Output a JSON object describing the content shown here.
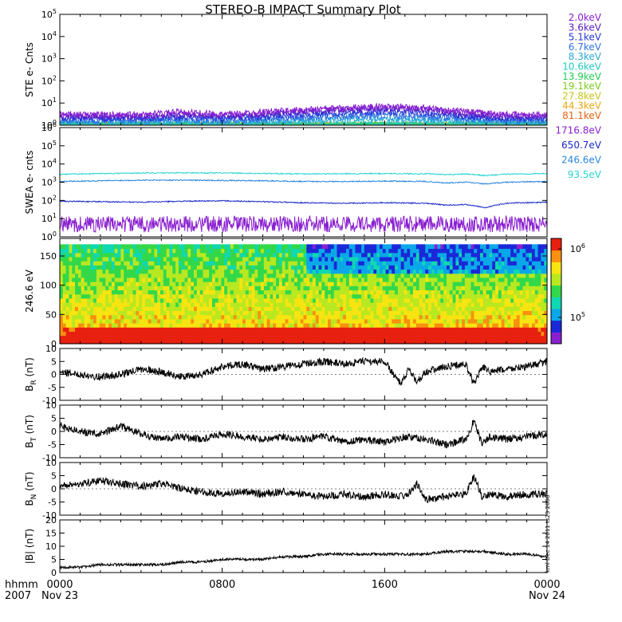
{
  "title": "STEREO-B IMPACT Summary Plot",
  "time_axis": {
    "corner_top": "hhmm",
    "corner_bottom": "2007",
    "ticks": [
      {
        "hour": 0,
        "label": "0000",
        "sub": "Nov 23"
      },
      {
        "hour": 8,
        "label": "0800",
        "sub": ""
      },
      {
        "hour": 16,
        "label": "1600",
        "sub": ""
      },
      {
        "hour": 24,
        "label": "0000",
        "sub": "Nov 24"
      }
    ]
  },
  "side_stamp": "kml Dec 14 2011 ts23 2008",
  "colors": {
    "ste": [
      "#8a1fd0",
      "#5a20c8",
      "#2838d8",
      "#2e74e0",
      "#2aa8d8",
      "#20c8c0",
      "#22cc55",
      "#7bcc1e",
      "#c8c61a",
      "#e6a60e",
      "#e66010",
      "#d4221a"
    ],
    "swea": [
      "#8a1fd0",
      "#1a28c8",
      "#2a86dc",
      "#2ad4d4"
    ],
    "colorbar": [
      "#8a1fd0",
      "#1a28d8",
      "#0aa8e8",
      "#10d8b0",
      "#32d84a",
      "#b8e820",
      "#f8e410",
      "#f89010",
      "#e82010"
    ]
  },
  "chart_data": [
    {
      "panel": "STE",
      "type": "line",
      "ylabel": "STE e- Cnts",
      "yscale": "log",
      "ylim": [
        1,
        100000
      ],
      "yticks": [
        "10^0",
        "10^1",
        "10^2",
        "10^3",
        "10^4",
        "10^5"
      ],
      "series": [
        {
          "name": "2.0keV",
          "x": [
            0,
            2,
            4,
            6,
            8,
            10,
            12,
            14,
            16,
            18,
            20,
            22,
            24
          ],
          "y": [
            3,
            3,
            3,
            4,
            3,
            4,
            5,
            6,
            7,
            6,
            4,
            3,
            3
          ]
        },
        {
          "name": "3.6keV",
          "x": [
            0,
            2,
            4,
            6,
            8,
            10,
            12,
            14,
            16,
            18,
            20,
            22,
            24
          ],
          "y": [
            2.5,
            2.5,
            2.5,
            3,
            2.5,
            3,
            4,
            5,
            5.5,
            5,
            3,
            2.5,
            2.5
          ]
        },
        {
          "name": "5.1keV",
          "x": [
            0,
            2,
            4,
            6,
            8,
            10,
            12,
            14,
            16,
            18,
            20,
            22,
            24
          ],
          "y": [
            2,
            2,
            2,
            2.2,
            2,
            2.3,
            3,
            3.5,
            4,
            3.5,
            2.5,
            2,
            2
          ]
        },
        {
          "name": "6.7keV",
          "x": [
            0,
            2,
            4,
            6,
            8,
            10,
            12,
            14,
            16,
            18,
            20,
            22,
            24
          ],
          "y": [
            1.6,
            1.6,
            1.6,
            1.8,
            1.6,
            1.8,
            2.2,
            2.5,
            2.8,
            2.4,
            1.9,
            1.6,
            1.6
          ]
        },
        {
          "name": "8.3keV",
          "x": [
            0,
            2,
            4,
            6,
            8,
            10,
            12,
            14,
            16,
            18,
            20,
            22,
            24
          ],
          "y": [
            1.3,
            1.3,
            1.3,
            1.4,
            1.3,
            1.4,
            1.6,
            1.8,
            1.9,
            1.7,
            1.5,
            1.3,
            1.3
          ]
        },
        {
          "name": "10.6keV",
          "x": [
            0,
            24
          ],
          "y": [
            1.1,
            1.1
          ]
        },
        {
          "name": "13.9keV",
          "x": [
            0,
            24
          ],
          "y": [
            1.05,
            1.05
          ]
        },
        {
          "name": "19.1keV",
          "x": [
            0,
            24
          ],
          "y": [
            1,
            1
          ]
        },
        {
          "name": "27.8keV",
          "x": [
            0,
            24
          ],
          "y": [
            1,
            1
          ]
        },
        {
          "name": "44.3keV",
          "x": [
            0,
            24
          ],
          "y": [
            1,
            1
          ]
        },
        {
          "name": "81.1keV",
          "x": [
            0,
            24
          ],
          "y": [
            1,
            1
          ]
        }
      ]
    },
    {
      "panel": "SWEA",
      "type": "line",
      "ylabel": "SWEA e- cnts",
      "yscale": "log",
      "ylim": [
        1,
        1000000
      ],
      "yticks": [
        "10^0",
        "10^1",
        "10^2",
        "10^3",
        "10^4",
        "10^5",
        "10^6"
      ],
      "series": [
        {
          "name": "1716.8eV",
          "x": [
            0,
            4,
            8,
            12,
            16,
            20,
            24
          ],
          "y": [
            5,
            5,
            5,
            5,
            5,
            5,
            5
          ]
        },
        {
          "name": "650.7eV",
          "x": [
            0,
            2,
            4,
            6,
            8,
            10,
            12,
            14,
            16,
            18,
            19,
            20,
            21,
            22,
            24
          ],
          "y": [
            90,
            85,
            80,
            90,
            95,
            85,
            75,
            70,
            75,
            70,
            55,
            60,
            40,
            70,
            80
          ]
        },
        {
          "name": "246.6eV",
          "x": [
            0,
            2,
            4,
            6,
            8,
            10,
            12,
            14,
            16,
            18,
            19,
            20,
            21,
            22,
            24
          ],
          "y": [
            1100,
            1200,
            1300,
            1300,
            1250,
            1200,
            1100,
            1100,
            1150,
            1100,
            900,
            1000,
            800,
            1000,
            1100
          ]
        },
        {
          "name": "93.5eV",
          "x": [
            0,
            2,
            4,
            6,
            8,
            10,
            12,
            14,
            16,
            18,
            19,
            20,
            21,
            22,
            24
          ],
          "y": [
            2700,
            3000,
            3200,
            3300,
            3200,
            3000,
            2900,
            2900,
            3000,
            2900,
            2600,
            2800,
            2300,
            2800,
            3000
          ]
        }
      ]
    },
    {
      "panel": "PAD",
      "type": "heatmap",
      "ylabel": "246.6 eV",
      "ylim": [
        0,
        180
      ],
      "yticks": [
        0,
        50,
        100,
        150
      ],
      "colorbar_ticks": [
        "10^5",
        "10^6"
      ]
    },
    {
      "panel": "BR",
      "type": "line",
      "ylabel": "B_R (nT)",
      "ylim": [
        -10,
        10
      ],
      "yticks": [
        -10,
        -5,
        0,
        5,
        10
      ],
      "x": [
        0,
        1,
        2,
        3,
        4,
        5,
        6,
        7,
        8,
        9,
        10,
        11,
        12,
        13,
        14,
        15,
        16,
        16.8,
        17.2,
        17.6,
        18,
        19,
        20,
        20.4,
        20.8,
        21.2,
        22,
        23,
        24
      ],
      "y": [
        1,
        0,
        -1,
        0,
        2,
        1,
        -1,
        0,
        3,
        4,
        2,
        3,
        4,
        5,
        4,
        5,
        5,
        -4,
        2,
        -3,
        1,
        3,
        4,
        -4,
        3,
        1,
        2,
        3,
        5
      ]
    },
    {
      "panel": "BT",
      "type": "line",
      "ylabel": "B_T (nT)",
      "ylim": [
        -10,
        10
      ],
      "yticks": [
        -10,
        -5,
        0,
        5,
        10
      ],
      "x": [
        0,
        1,
        2,
        3,
        4,
        5,
        6,
        7,
        8,
        9,
        10,
        11,
        12,
        13,
        14,
        15,
        16,
        17,
        18,
        19,
        20,
        20.4,
        20.8,
        21.2,
        22,
        23,
        24
      ],
      "y": [
        2,
        0,
        -1,
        2,
        -1,
        -3,
        -2,
        -3,
        -1,
        -2,
        -3,
        -2,
        -3,
        -2,
        -4,
        -3,
        -4,
        -2,
        -3,
        -5,
        -3,
        4,
        -5,
        -2,
        -3,
        -2,
        -1
      ]
    },
    {
      "panel": "BN",
      "type": "line",
      "ylabel": "B_N (nT)",
      "ylim": [
        -10,
        10
      ],
      "yticks": [
        -10,
        -5,
        0,
        5,
        10
      ],
      "x": [
        0,
        1,
        2,
        3,
        4,
        5,
        6,
        7,
        8,
        9,
        10,
        11,
        12,
        13,
        14,
        15,
        16,
        17,
        17.6,
        18,
        19,
        20,
        20.4,
        20.8,
        21.2,
        22,
        23,
        24
      ],
      "y": [
        1,
        2,
        3,
        2,
        1,
        2,
        0,
        -1,
        -2,
        -1,
        -2,
        -1,
        -2,
        -3,
        -2,
        -3,
        -2,
        -3,
        2,
        -4,
        -3,
        -2,
        5,
        -3,
        -2,
        -3,
        -2,
        -2
      ]
    },
    {
      "panel": "B",
      "type": "line",
      "ylabel": "|B| (nT)",
      "ylim": [
        0,
        20
      ],
      "yticks": [
        0,
        5,
        10,
        15,
        20
      ],
      "x": [
        0,
        1,
        2,
        3,
        4,
        5,
        6,
        7,
        8,
        9,
        10,
        11,
        12,
        13,
        14,
        15,
        16,
        17,
        18,
        19,
        20,
        21,
        22,
        23,
        24
      ],
      "y": [
        2,
        2,
        3,
        3,
        3,
        3,
        4,
        4,
        5,
        5,
        5,
        6,
        6,
        7,
        7,
        7,
        7,
        7,
        7,
        8,
        8,
        8,
        7,
        7,
        6
      ]
    }
  ]
}
